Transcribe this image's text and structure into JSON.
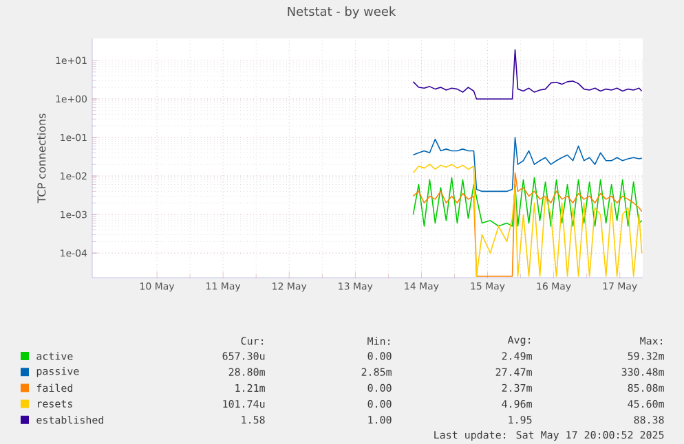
{
  "chart_data": {
    "type": "line",
    "title": "Netstat - by week",
    "ylabel": "TCP connections",
    "log": "y",
    "grid": true,
    "legend": "bottom",
    "marker": "none",
    "xlim": [
      "2025-05-09T12:30",
      "2025-05-17T20:20"
    ],
    "xticks": [
      {
        "value": "2025-05-10T12:00",
        "label": "10 May"
      },
      {
        "value": "2025-05-11T12:00",
        "label": "11 May"
      },
      {
        "value": "2025-05-12T12:00",
        "label": "12 May"
      },
      {
        "value": "2025-05-13T12:00",
        "label": "13 May"
      },
      {
        "value": "2025-05-14T12:00",
        "label": "14 May"
      },
      {
        "value": "2025-05-15T12:00",
        "label": "15 May"
      },
      {
        "value": "2025-05-16T12:00",
        "label": "16 May"
      },
      {
        "value": "2025-05-17T12:00",
        "label": "17 May"
      }
    ],
    "ylim": [
      2.3e-05,
      37
    ],
    "yticks": [
      {
        "value": 0.0001,
        "label": "1e-04"
      },
      {
        "value": 0.001,
        "label": "1e-03"
      },
      {
        "value": 0.01,
        "label": "1e-02"
      },
      {
        "value": 0.1,
        "label": "1e-01"
      },
      {
        "value": 1,
        "label": "1e+00"
      },
      {
        "value": 10,
        "label": "1e+01"
      }
    ],
    "x": [
      "2025-05-14T09:00",
      "2025-05-14T11:00",
      "2025-05-14T13:00",
      "2025-05-14T15:00",
      "2025-05-14T17:00",
      "2025-05-14T19:00",
      "2025-05-14T21:00",
      "2025-05-14T23:00",
      "2025-05-15T01:00",
      "2025-05-15T03:00",
      "2025-05-15T05:00",
      "2025-05-15T07:00",
      "2025-05-15T08:00",
      "2025-05-15T10:00",
      "2025-05-15T13:00",
      "2025-05-15T16:00",
      "2025-05-15T19:00",
      "2025-05-15T21:00",
      "2025-05-15T22:00",
      "2025-05-15T23:00",
      "2025-05-16T01:00",
      "2025-05-16T03:00",
      "2025-05-16T05:00",
      "2025-05-16T07:00",
      "2025-05-16T09:00",
      "2025-05-16T11:00",
      "2025-05-16T13:00",
      "2025-05-16T15:00",
      "2025-05-16T17:00",
      "2025-05-16T19:00",
      "2025-05-16T21:00",
      "2025-05-16T23:00",
      "2025-05-17T01:00",
      "2025-05-17T03:00",
      "2025-05-17T05:00",
      "2025-05-17T07:00",
      "2025-05-17T09:00",
      "2025-05-17T11:00",
      "2025-05-17T13:00",
      "2025-05-17T15:00",
      "2025-05-17T17:00",
      "2025-05-17T19:00",
      "2025-05-17T20:00"
    ],
    "series": [
      {
        "name": "active",
        "color": "#00cc00",
        "values": [
          0.001,
          0.006,
          0.0005,
          0.008,
          0.0006,
          0.005,
          0.0007,
          0.009,
          0.0006,
          0.008,
          0.0008,
          0.006,
          null,
          0.0006,
          0.0007,
          0.0005,
          0.0006,
          0.0005,
          0.006,
          0.0005,
          0.008,
          0.0006,
          0.009,
          0.0007,
          0.007,
          0.0005,
          0.008,
          0.0006,
          0.006,
          0.0005,
          0.008,
          0.0006,
          0.007,
          0.0005,
          0.008,
          0.0006,
          0.006,
          0.0007,
          0.008,
          0.0005,
          0.007,
          0.0006,
          0.0007
        ]
      },
      {
        "name": "passive",
        "color": "#0066b3",
        "values": [
          0.035,
          0.04,
          0.045,
          0.04,
          0.09,
          0.045,
          0.05,
          0.045,
          0.045,
          0.05,
          0.045,
          0.045,
          0.0045,
          0.004,
          0.004,
          0.004,
          0.004,
          0.0045,
          0.1,
          0.02,
          0.025,
          0.045,
          0.02,
          0.025,
          0.03,
          0.02,
          0.025,
          0.03,
          0.035,
          0.025,
          0.06,
          0.025,
          0.03,
          0.02,
          0.04,
          0.025,
          0.025,
          0.03,
          0.025,
          0.028,
          0.03,
          0.028,
          0.029
        ]
      },
      {
        "name": "failed",
        "color": "#ff8000",
        "values": [
          0.003,
          0.004,
          0.002,
          0.003,
          0.0025,
          0.004,
          0.002,
          0.003,
          0.002,
          0.0035,
          0.0025,
          0.003,
          2.5e-05,
          2.5e-05,
          2.5e-05,
          2.5e-05,
          2.5e-05,
          2.5e-05,
          0.012,
          0.004,
          0.005,
          0.003,
          0.004,
          0.0025,
          0.003,
          0.002,
          0.004,
          0.0025,
          0.003,
          0.002,
          0.0035,
          0.0025,
          0.003,
          0.002,
          0.0035,
          0.0025,
          0.003,
          0.002,
          0.003,
          0.0025,
          0.002,
          0.0015,
          0.0012
        ]
      },
      {
        "name": "resets",
        "color": "#ffcc00",
        "values": [
          0.012,
          0.018,
          0.016,
          0.02,
          0.015,
          0.019,
          0.017,
          0.02,
          0.016,
          0.019,
          0.015,
          0.018,
          2.5e-05,
          0.0003,
          0.0001,
          0.0005,
          0.0002,
          0.0008,
          0.005,
          2.5e-05,
          0.001,
          2.5e-05,
          0.002,
          2.5e-05,
          0.003,
          0.001,
          2.5e-05,
          0.002,
          2.5e-05,
          0.0015,
          2.5e-05,
          0.002,
          2.5e-05,
          0.0015,
          0.001,
          2.5e-05,
          0.002,
          2.5e-05,
          0.001,
          0.0015,
          2.5e-05,
          0.001,
          0.0001
        ]
      },
      {
        "name": "established",
        "color": "#330099",
        "values": [
          2.8,
          2.0,
          1.9,
          2.1,
          1.8,
          2.0,
          1.7,
          1.9,
          1.8,
          1.5,
          2.0,
          1.6,
          1.0,
          1.0,
          1.0,
          1.0,
          1.0,
          1.0,
          19,
          1.8,
          1.6,
          1.9,
          1.5,
          1.7,
          1.8,
          2.6,
          2.7,
          2.4,
          2.8,
          2.9,
          2.5,
          1.8,
          1.7,
          1.9,
          1.6,
          1.8,
          1.7,
          1.9,
          1.6,
          1.8,
          1.7,
          1.9,
          1.6
        ]
      }
    ],
    "annotations": [
      "Cur:",
      "Min:",
      "Avg:",
      "Max:",
      "657.30u",
      "0.00",
      "2.49m",
      "59.32m",
      "28.80m",
      "2.85m",
      "27.47m",
      "330.48m",
      "1.21m",
      "0.00",
      "2.37m",
      "85.08m",
      "101.74u",
      "0.00",
      "4.96m",
      "45.60m",
      "1.58",
      "1.00",
      "1.95",
      "88.38",
      "Last update: Sat May 17 20:00:52 2025"
    ]
  }
}
